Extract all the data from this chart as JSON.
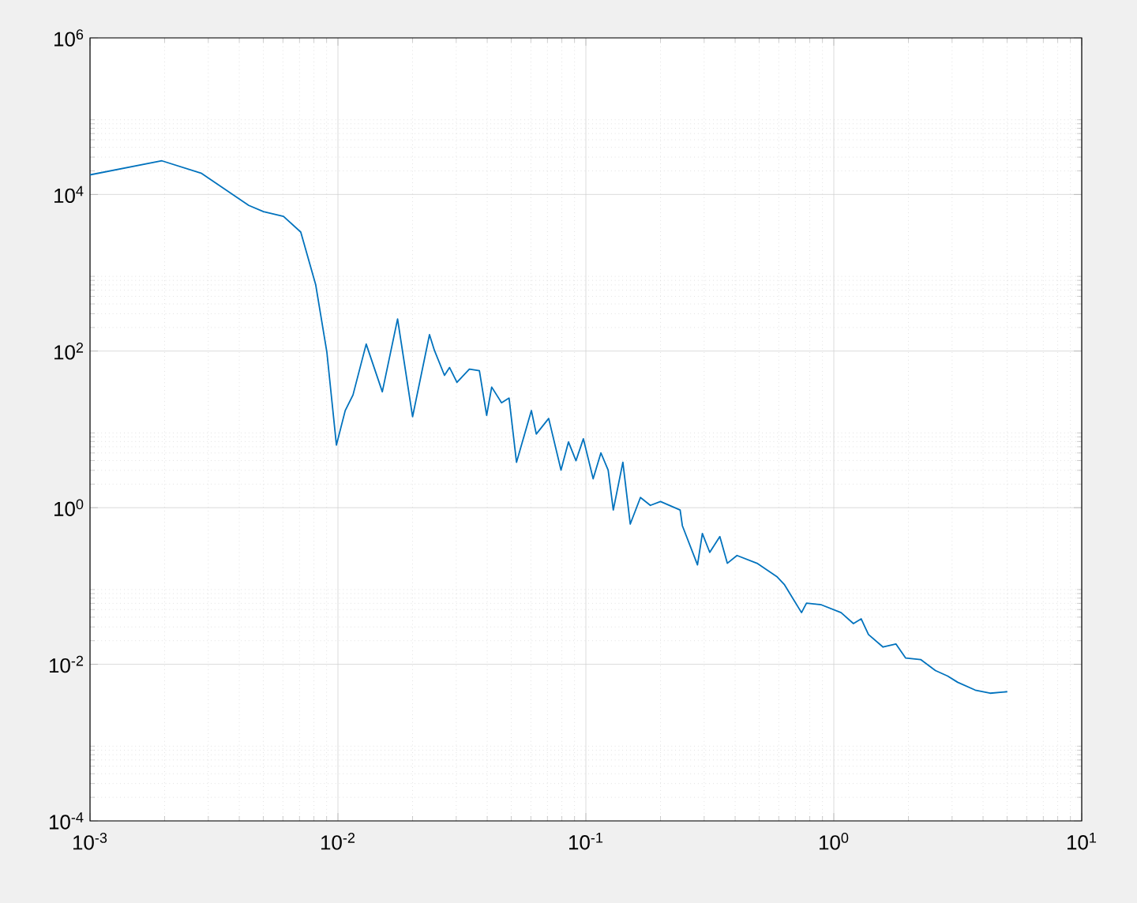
{
  "chart_data": {
    "type": "line",
    "log": "xy",
    "grid": true,
    "marker": "none",
    "line_style": "solid",
    "xlim": [
      0.001,
      10
    ],
    "ylim": [
      0.0001,
      1000000
    ],
    "xticks": [
      {
        "value": 0.001,
        "label": "10$^{-3}$"
      },
      {
        "value": 0.01,
        "label": "10$^{-2}$"
      },
      {
        "value": 0.1,
        "label": "10$^{-1}$"
      },
      {
        "value": 1,
        "label": "10$^{0}$"
      },
      {
        "value": 10,
        "label": "10$^{1}$"
      }
    ],
    "yticks": [
      {
        "value": 0.0001,
        "label": "10$^{-4}$"
      },
      {
        "value": 0.01,
        "label": "10$^{-2}$"
      },
      {
        "value": 1,
        "label": "10$^{0}$"
      },
      {
        "value": 100,
        "label": "10$^{2}$"
      },
      {
        "value": 10000,
        "label": "10$^{4}$"
      },
      {
        "value": 1000000,
        "label": "10$^{6}$"
      }
    ],
    "x": [
      0.001,
      0.00195,
      0.00282,
      0.00437,
      0.00501,
      0.00603,
      0.00708,
      0.00813,
      0.00902,
      0.00986,
      0.0107,
      0.0115,
      0.013,
      0.0151,
      0.0174,
      0.02,
      0.0234,
      0.0245,
      0.0269,
      0.0282,
      0.0302,
      0.0339,
      0.0372,
      0.0398,
      0.0417,
      0.0457,
      0.049,
      0.0525,
      0.0603,
      0.0631,
      0.0708,
      0.0794,
      0.0851,
      0.0912,
      0.0977,
      0.107,
      0.115,
      0.123,
      0.129,
      0.141,
      0.151,
      0.166,
      0.182,
      0.2,
      0.24,
      0.245,
      0.282,
      0.295,
      0.316,
      0.347,
      0.372,
      0.407,
      0.49,
      0.589,
      0.631,
      0.741,
      0.776,
      0.891,
      1.07,
      1.2,
      1.29,
      1.38,
      1.58,
      1.78,
      1.95,
      2.24,
      2.57,
      2.88,
      3.16,
      3.72,
      4.27,
      5.01
    ],
    "series": [
      {
        "color": "#0072bd",
        "values": [
          17800,
          26900,
          18600,
          7240,
          6030,
          5250,
          3310,
          708,
          97.7,
          6.31,
          17.4,
          27.5,
          123,
          30.2,
          257,
          14.5,
          162,
          102,
          49,
          61.7,
          39.8,
          58.9,
          56.2,
          15.1,
          34.7,
          21.9,
          25.1,
          3.8,
          17.4,
          8.71,
          13.8,
          3.02,
          6.92,
          3.98,
          7.59,
          2.34,
          5.01,
          3.02,
          0.933,
          3.8,
          0.617,
          1.35,
          1.07,
          1.2,
          0.933,
          0.589,
          0.186,
          0.468,
          0.269,
          0.427,
          0.195,
          0.245,
          0.195,
          0.132,
          0.105,
          0.0457,
          0.0603,
          0.0575,
          0.0457,
          0.0331,
          0.038,
          0.024,
          0.0166,
          0.0182,
          0.012,
          0.0115,
          0.00832,
          0.00708,
          0.00589,
          0.00468,
          0.00427,
          0.00447
        ]
      }
    ]
  }
}
